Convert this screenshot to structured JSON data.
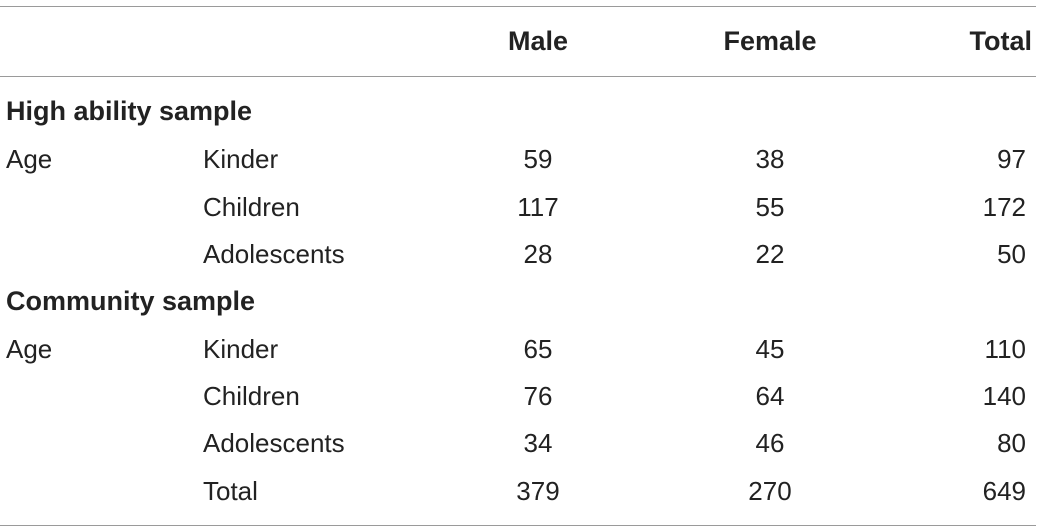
{
  "table": {
    "headers": {
      "male": "Male",
      "female": "Female",
      "total": "Total"
    },
    "sections": [
      {
        "title": "High ability sample",
        "group_label": "Age",
        "rows": [
          {
            "label": "Kinder",
            "male": "59",
            "female": "38",
            "total": "97"
          },
          {
            "label": "Children",
            "male": "117",
            "female": "55",
            "total": "172"
          },
          {
            "label": "Adolescents",
            "male": "28",
            "female": "22",
            "total": "50"
          }
        ]
      },
      {
        "title": "Community sample",
        "group_label": "Age",
        "rows": [
          {
            "label": "Kinder",
            "male": "65",
            "female": "45",
            "total": "110"
          },
          {
            "label": "Children",
            "male": "76",
            "female": "64",
            "total": "140"
          },
          {
            "label": "Adolescents",
            "male": "34",
            "female": "46",
            "total": "80"
          },
          {
            "label": "Total",
            "male": "379",
            "female": "270",
            "total": "649"
          }
        ]
      }
    ]
  }
}
